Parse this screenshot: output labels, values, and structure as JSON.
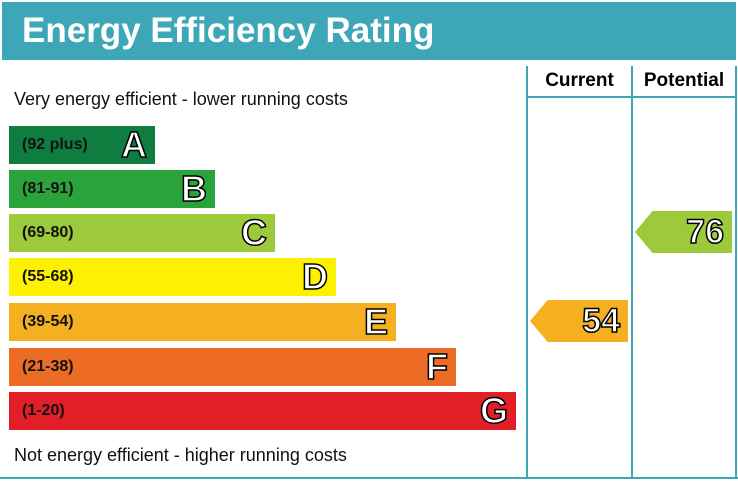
{
  "chart_data": {
    "type": "bar",
    "title": "Energy Efficiency Rating",
    "top_note": "Very energy efficient - lower running costs",
    "bottom_note": "Not energy efficient - higher running costs",
    "columns": [
      "Current",
      "Potential"
    ],
    "bands": [
      {
        "letter": "A",
        "range": "(92 plus)",
        "color": "#0f7d3f"
      },
      {
        "letter": "B",
        "range": "(81-91)",
        "color": "#2aa33b"
      },
      {
        "letter": "C",
        "range": "(69-80)",
        "color": "#9dc93c"
      },
      {
        "letter": "D",
        "range": "(55-68)",
        "color": "#fdf000"
      },
      {
        "letter": "E",
        "range": "(39-54)",
        "color": "#f5b022"
      },
      {
        "letter": "F",
        "range": "(21-38)",
        "color": "#ec6b25"
      },
      {
        "letter": "G",
        "range": "(1-20)",
        "color": "#e21e26"
      }
    ],
    "current": {
      "value": "54",
      "band": "E",
      "color": "#f5b022"
    },
    "potential": {
      "value": "76",
      "band": "C",
      "color": "#9dc93c"
    }
  }
}
